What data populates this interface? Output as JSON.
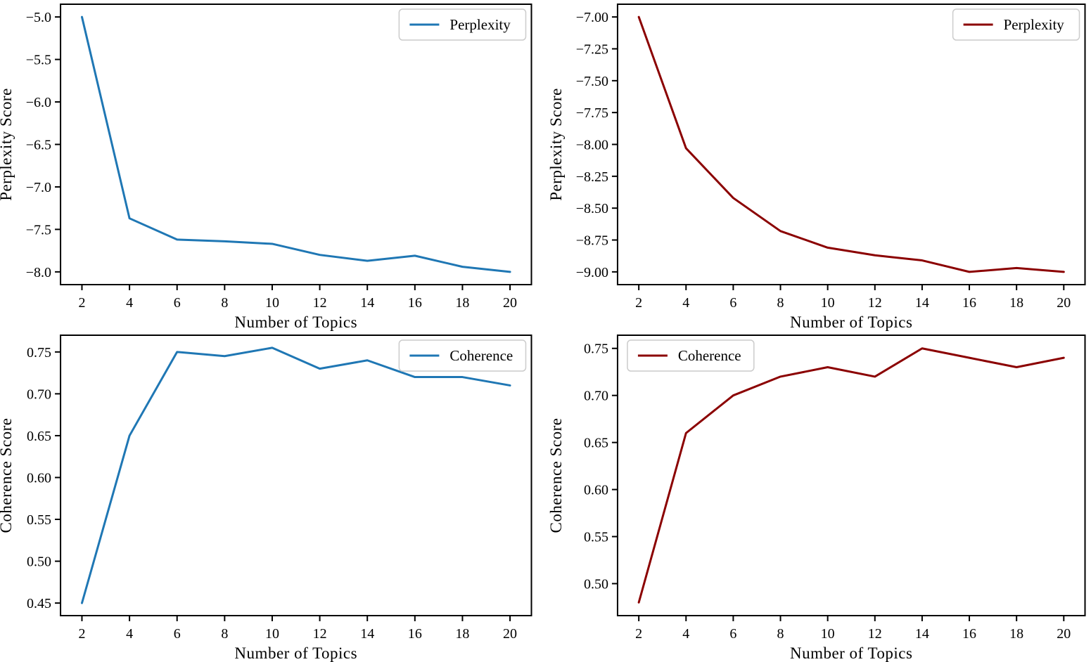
{
  "chart_data": [
    {
      "id": "perplexity-lda",
      "type": "line",
      "title": "",
      "xlabel": "Number of Topics",
      "ylabel": "Perplexity Score",
      "x": [
        2,
        4,
        6,
        8,
        10,
        12,
        14,
        16,
        18,
        20
      ],
      "series": [
        {
          "name": "Perplexity",
          "color": "#1f77b4",
          "values": [
            -5.0,
            -7.37,
            -7.62,
            -7.64,
            -7.67,
            -7.8,
            -7.87,
            -7.81,
            -7.94,
            -8.0
          ]
        }
      ],
      "xticks": [
        2,
        4,
        6,
        8,
        10,
        12,
        14,
        16,
        18,
        20
      ],
      "xtick_labels": [
        "2",
        "4",
        "6",
        "8",
        "10",
        "12",
        "14",
        "16",
        "18",
        "20"
      ],
      "yticks": [
        -5.0,
        -5.5,
        -6.0,
        -6.5,
        -7.0,
        -7.5,
        -8.0
      ],
      "ytick_labels": [
        "−5.0",
        "−5.5",
        "−6.0",
        "−6.5",
        "−7.0",
        "−7.5",
        "−8.0"
      ],
      "xlim": [
        1.1,
        20.9
      ],
      "ylim": [
        -8.15,
        -4.85
      ],
      "grid": false,
      "legend": {
        "entries": [
          "Perplexity"
        ],
        "position": "upper-right"
      }
    },
    {
      "id": "perplexity-model2",
      "type": "line",
      "title": "",
      "xlabel": "Number of Topics",
      "ylabel": "Perplexity Score",
      "x": [
        2,
        4,
        6,
        8,
        10,
        12,
        14,
        16,
        18,
        20
      ],
      "series": [
        {
          "name": "Perplexity",
          "color": "#8b0000",
          "values": [
            -7.0,
            -8.03,
            -8.42,
            -8.68,
            -8.81,
            -8.87,
            -8.91,
            -9.0,
            -8.97,
            -9.0
          ]
        }
      ],
      "xticks": [
        2,
        4,
        6,
        8,
        10,
        12,
        14,
        16,
        18,
        20
      ],
      "xtick_labels": [
        "2",
        "4",
        "6",
        "8",
        "10",
        "12",
        "14",
        "16",
        "18",
        "20"
      ],
      "yticks": [
        -7.0,
        -7.25,
        -7.5,
        -7.75,
        -8.0,
        -8.25,
        -8.5,
        -8.75,
        -9.0
      ],
      "ytick_labels": [
        "−7.00",
        "−7.25",
        "−7.50",
        "−7.75",
        "−8.00",
        "−8.25",
        "−8.50",
        "−8.75",
        "−9.00"
      ],
      "xlim": [
        1.1,
        20.9
      ],
      "ylim": [
        -9.1,
        -6.9
      ],
      "grid": false,
      "legend": {
        "entries": [
          "Perplexity"
        ],
        "position": "upper-right"
      }
    },
    {
      "id": "coherence-lda",
      "type": "line",
      "title": "",
      "xlabel": "Number of Topics",
      "ylabel": "Coherence Score",
      "x": [
        2,
        4,
        6,
        8,
        10,
        12,
        14,
        16,
        18,
        20
      ],
      "series": [
        {
          "name": "Coherence",
          "color": "#1f77b4",
          "values": [
            0.45,
            0.65,
            0.75,
            0.745,
            0.755,
            0.73,
            0.74,
            0.72,
            0.72,
            0.71
          ]
        }
      ],
      "xticks": [
        2,
        4,
        6,
        8,
        10,
        12,
        14,
        16,
        18,
        20
      ],
      "xtick_labels": [
        "2",
        "4",
        "6",
        "8",
        "10",
        "12",
        "14",
        "16",
        "18",
        "20"
      ],
      "yticks": [
        0.45,
        0.5,
        0.55,
        0.6,
        0.65,
        0.7,
        0.75
      ],
      "ytick_labels": [
        "0.45",
        "0.50",
        "0.55",
        "0.60",
        "0.65",
        "0.70",
        "0.75"
      ],
      "xlim": [
        1.1,
        20.9
      ],
      "ylim": [
        0.435,
        0.77
      ],
      "grid": false,
      "legend": {
        "entries": [
          "Coherence"
        ],
        "position": "upper-right"
      }
    },
    {
      "id": "coherence-model2",
      "type": "line",
      "title": "",
      "xlabel": "Number of Topics",
      "ylabel": "Coherence Score",
      "x": [
        2,
        4,
        6,
        8,
        10,
        12,
        14,
        16,
        18,
        20
      ],
      "series": [
        {
          "name": "Coherence",
          "color": "#8b0000",
          "values": [
            0.48,
            0.66,
            0.7,
            0.72,
            0.73,
            0.72,
            0.75,
            0.74,
            0.73,
            0.74
          ]
        }
      ],
      "xticks": [
        2,
        4,
        6,
        8,
        10,
        12,
        14,
        16,
        18,
        20
      ],
      "xtick_labels": [
        "2",
        "4",
        "6",
        "8",
        "10",
        "12",
        "14",
        "16",
        "18",
        "20"
      ],
      "yticks": [
        0.5,
        0.55,
        0.6,
        0.65,
        0.7,
        0.75
      ],
      "ytick_labels": [
        "0.50",
        "0.55",
        "0.60",
        "0.65",
        "0.70",
        "0.75"
      ],
      "xlim": [
        1.1,
        20.9
      ],
      "ylim": [
        0.466,
        0.764
      ],
      "grid": false,
      "legend": {
        "entries": [
          "Coherence"
        ],
        "position": "upper-left"
      }
    }
  ],
  "style": {
    "background": "#ffffff",
    "axis_color": "#000000",
    "legend_border_color": "#cccccc",
    "legend_background": "#ffffff"
  }
}
